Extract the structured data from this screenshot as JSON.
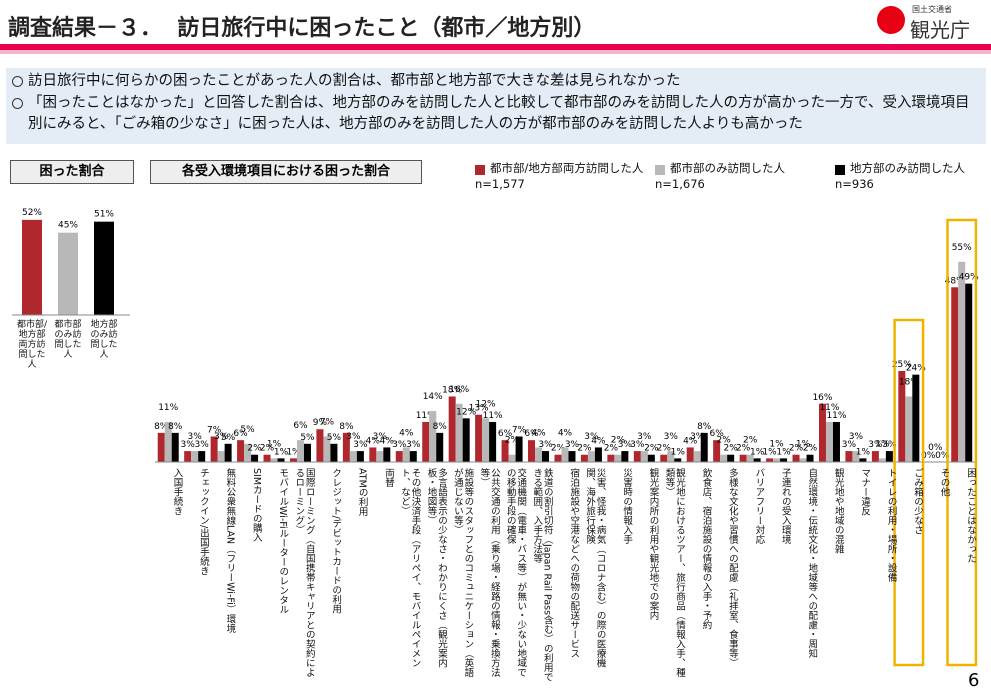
{
  "header": {
    "title": "調査結果－３．  訪日旅行中に困ったこと（都市／地方別）",
    "logo_org": "国土交通省",
    "logo_name": "観光庁"
  },
  "bullets": [
    "訪日旅行中に何らかの困ったことがあった人の割合は、都市部と地方部で大きな差は見られなかった",
    "「困ったことはなかった」と回答した割合は、地方部のみを訪問した人と比較して都市部のみを訪問した人の方が高かった一方で、受入環境項目別にみると、「ごみ箱の少なさ」に困った人は、地方部のみを訪問した人の方が都市部のみを訪問した人よりも高かった"
  ],
  "page_number": "6",
  "chart_data": [
    {
      "type": "bar",
      "title": "困った割合",
      "categories": [
        "都市部/地方部両方訪問した人",
        "都市部のみ訪問した人",
        "地方部のみ訪問した人"
      ],
      "values": [
        52,
        45,
        51
      ],
      "value_labels": [
        "52%",
        "45%",
        "51%"
      ],
      "colors": [
        "#b0272d",
        "#b8b8b8",
        "#000000"
      ]
    },
    {
      "type": "grouped_bar",
      "title": "各受入環境項目における困った割合",
      "legend": "top-right",
      "categories": [
        "入国手続き",
        "チェックイン/出国手続き",
        "無料公衆無線LAN（フリーWi-Fi）環境",
        "SIMカードの購入",
        "モバイルWi-Fiルーターのレンタル",
        "国際ローミング（自国携帯キャリアとの契約によるローミング）",
        "クレジット/デビットカードの利用",
        "ATMの利用",
        "両替",
        "その他決済手段（アリペイ、モバイルペイメント、など）",
        "多言語表示の少なさ・わかりにくさ（観光案内板・地図等）",
        "施設等のスタッフとのコミュニケーション（英語が通じない等）",
        "公共交通の利用（乗り場・経路の情報・乗換方法等）",
        "交通機関（電車・バス等）が無い・少ない地域での移動手段の確保",
        "鉄道の割引切符（Japan Rail Pass含む）の利用できる範囲、入手方法等",
        "宿泊施設や空港などへの荷物の配送サービス",
        "災害、怪我・病気（コロナ含む）の際の医療機関、海外旅行保険",
        "災害時の情報入手",
        "観光案内所の利用や観光地での案内",
        "観光地におけるツアー、旅行商品（情報入手、種類等）",
        "飲食店、宿泊施設の情報の入手・予約",
        "多様な文化や習慣への配慮（礼拝室、食事等）",
        "バリアフリー対応",
        "子連れの受入環境",
        "自然環境・伝統文化・地域等への配慮・周知",
        "観光地や地域の混雑",
        "マナー違反",
        "トイレの利用・場所・設備",
        "ごみ箱の少なさ",
        "その他",
        "困ったことはなかった"
      ],
      "series": [
        {
          "name": "都市部/地方部両方訪問した人",
          "sample": "n=1,577",
          "color": "#b0272d",
          "values": [
            8,
            3,
            7,
            6,
            2,
            1,
            9,
            8,
            4,
            3,
            11,
            18,
            13,
            6,
            6,
            2,
            2,
            2,
            3,
            2,
            4,
            6,
            2,
            1,
            2,
            16,
            3,
            3,
            25,
            0,
            48
          ],
          "value_labels": [
            "8%",
            "3%",
            "7%",
            "6%",
            "2%",
            "1%",
            "9%",
            "8%",
            "4%",
            "3%",
            "11%",
            "18%",
            "13%",
            "6%",
            "6%",
            "2%",
            "2%",
            "2%",
            "3%",
            "2%",
            "4%",
            "6%",
            "2%",
            "1%",
            "2%",
            "16%",
            "3%",
            "3%",
            "25%",
            "0%",
            "48%"
          ]
        },
        {
          "name": "都市部のみ訪問した人",
          "sample": "n=1,676",
          "color": "#b8b8b8",
          "values": [
            11,
            3,
            3,
            5,
            1,
            6,
            7,
            3,
            3,
            4,
            14,
            16,
            12,
            2,
            4,
            4,
            3,
            2,
            3,
            3,
            3,
            2,
            2,
            1,
            1,
            11,
            3,
            1,
            18,
            0,
            55
          ],
          "value_labels": [
            "11%",
            "3%",
            "3%",
            "5%",
            "1%",
            "6%",
            "7%",
            "3%",
            "3%",
            "4%",
            "14%",
            "16%",
            "12%",
            "2%",
            "4%",
            "4%",
            "3%",
            "2%",
            "3%",
            "3%",
            "3%",
            "2%",
            "2%",
            "1%",
            "1%",
            "11%",
            "3%",
            "1%",
            "18%",
            "0%",
            "55%"
          ]
        },
        {
          "name": "地方部のみ訪問した人",
          "sample": "n=936",
          "color": "#000000",
          "values": [
            8,
            3,
            5,
            2,
            1,
            5,
            5,
            3,
            4,
            3,
            8,
            12,
            11,
            7,
            3,
            3,
            4,
            3,
            2,
            1,
            8,
            2,
            1,
            1,
            2,
            11,
            1,
            3,
            24,
            0,
            49
          ],
          "value_labels": [
            "8%",
            "3%",
            "5%",
            "2%",
            "1%",
            "5%",
            "5%",
            "3%",
            "4%",
            "3%",
            "8%",
            "12%",
            "11%",
            "7%",
            "3%",
            "3%",
            "4%",
            "3%",
            "2%",
            "1%",
            "8%",
            "2%",
            "1%",
            "1%",
            "2%",
            "11%",
            "1%",
            "3%",
            "24%",
            "0%",
            "49%"
          ]
        }
      ]
    }
  ]
}
